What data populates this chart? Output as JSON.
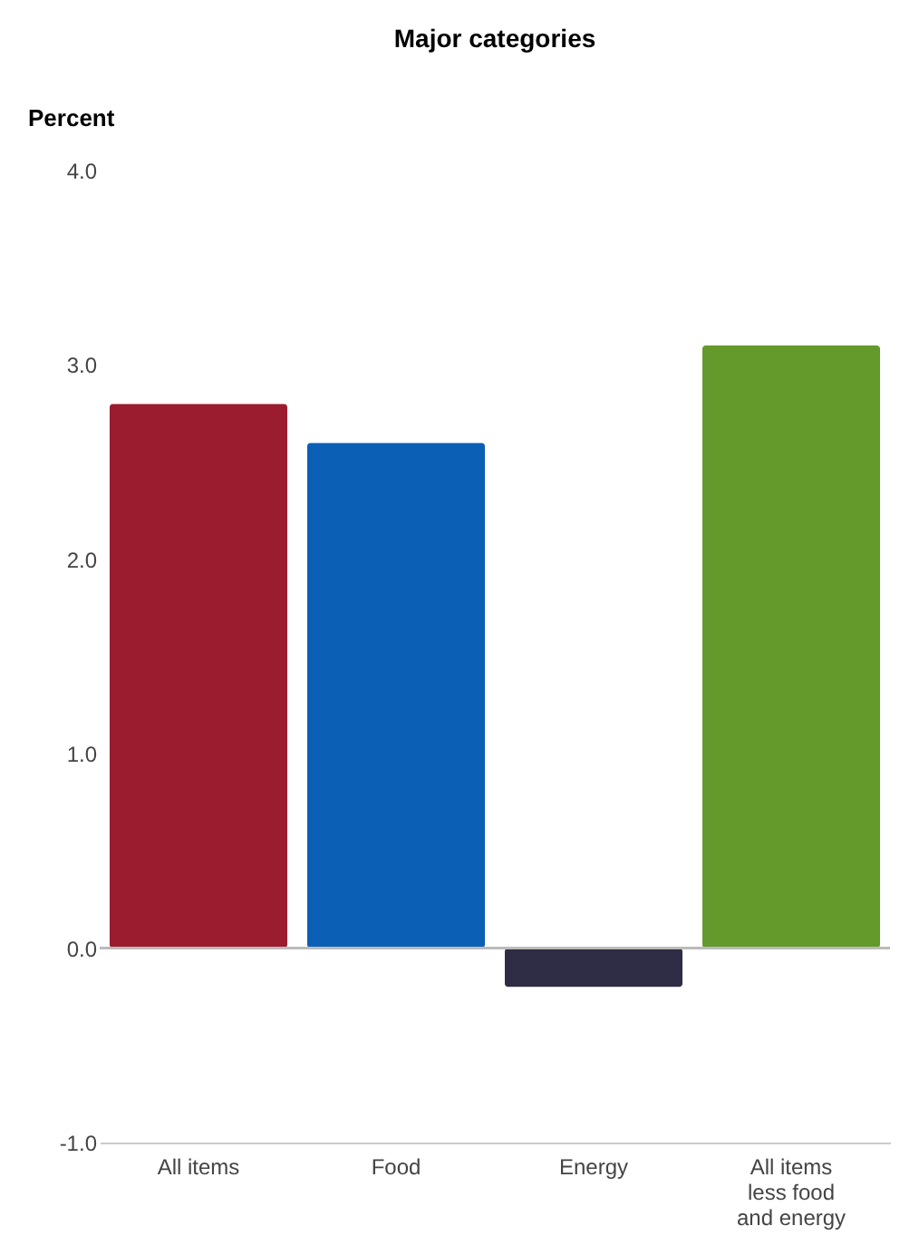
{
  "chart_data": {
    "type": "bar",
    "title": "Major categories",
    "ylabel": "Percent",
    "categories": [
      "All items",
      "Food",
      "Energy",
      "All items less food and energy"
    ],
    "values": [
      2.8,
      2.6,
      -0.2,
      3.1
    ],
    "colors": [
      "#9b1c2e",
      "#0b5fb5",
      "#2f2c45",
      "#64992c"
    ],
    "ylim": [
      -1.0,
      4.0
    ],
    "yticks": [
      {
        "value": -1,
        "label": "-1.0"
      },
      {
        "value": 0,
        "label": "0.0"
      },
      {
        "value": 1,
        "label": "1.0"
      },
      {
        "value": 2,
        "label": "2.0"
      },
      {
        "value": 3,
        "label": "3.0"
      },
      {
        "value": 4,
        "label": "4.0"
      }
    ],
    "ref_lines": [
      {
        "axis": "y",
        "value": 0,
        "color": "#bbbbbb"
      }
    ],
    "grid": false,
    "legend": false
  }
}
